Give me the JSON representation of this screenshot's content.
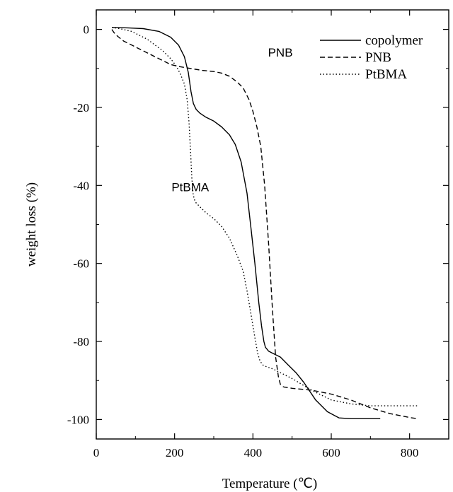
{
  "chart_data": {
    "type": "line",
    "xlabel": "Temperature (℃)",
    "ylabel": "weight loss (%)",
    "xlim": [
      0,
      900
    ],
    "ylim": [
      -105,
      5
    ],
    "xticks": [
      0,
      200,
      400,
      600,
      800
    ],
    "yticks": [
      0,
      -20,
      -40,
      -60,
      -80,
      -100
    ],
    "xtick_labels": [
      "0",
      "200",
      "400",
      "600",
      "800"
    ],
    "ytick_labels": [
      "0",
      "-20",
      "-40",
      "-60",
      "-80",
      "-100"
    ],
    "legend_position": "top-right",
    "grid": false,
    "annotations": [
      {
        "text": "PNB",
        "x": 470,
        "y": -7
      },
      {
        "text": "PtBMA",
        "x": 240,
        "y": -41.5
      }
    ],
    "series": [
      {
        "name": "copolymer",
        "style": "solid",
        "x": [
          40,
          80,
          120,
          160,
          190,
          210,
          225,
          235,
          242,
          248,
          255,
          265,
          280,
          300,
          320,
          340,
          355,
          370,
          385,
          395,
          405,
          415,
          422,
          428,
          432,
          436,
          440,
          450,
          470,
          490,
          510,
          530,
          560,
          590,
          620,
          650,
          700,
          725
        ],
        "y": [
          0.5,
          0.4,
          0.2,
          -0.5,
          -2,
          -4,
          -7,
          -11,
          -16,
          -19,
          -20.5,
          -21.5,
          -22.5,
          -23.5,
          -25,
          -27,
          -29.5,
          -34,
          -42,
          -51,
          -60,
          -70,
          -76,
          -80,
          -81.5,
          -82,
          -82.5,
          -83,
          -84,
          -86,
          -88,
          -90.5,
          -95,
          -98,
          -99.6,
          -99.8,
          -99.8,
          -99.8
        ]
      },
      {
        "name": "PNB",
        "style": "dashed",
        "x": [
          40,
          45,
          55,
          70,
          100,
          130,
          160,
          190,
          210,
          240,
          270,
          300,
          320,
          340,
          360,
          375,
          390,
          400,
          410,
          420,
          430,
          440,
          450,
          458,
          465,
          470,
          475,
          480,
          500,
          550,
          600,
          650,
          700,
          750,
          800,
          820
        ],
        "y": [
          0,
          -0.8,
          -1.8,
          -3,
          -4.5,
          -6,
          -7.5,
          -9,
          -9.5,
          -10,
          -10.5,
          -10.8,
          -11.2,
          -12,
          -13.5,
          -15,
          -18,
          -21,
          -25,
          -30,
          -40,
          -55,
          -72,
          -84,
          -89,
          -91,
          -91.5,
          -91.7,
          -92,
          -92.5,
          -93.5,
          -95,
          -97,
          -98.5,
          -99.5,
          -99.8
        ]
      },
      {
        "name": "PtBMA",
        "style": "dotted",
        "x": [
          40,
          60,
          90,
          110,
          130,
          150,
          170,
          190,
          205,
          215,
          225,
          232,
          237,
          241,
          244,
          247,
          250,
          255,
          265,
          280,
          300,
          320,
          340,
          360,
          375,
          385,
          395,
          405,
          412,
          418,
          425,
          435,
          450,
          470,
          500,
          550,
          600,
          650,
          700,
          750,
          800,
          820
        ],
        "y": [
          0.5,
          0.2,
          -0.5,
          -1.5,
          -2.5,
          -4,
          -5.5,
          -7.5,
          -9.5,
          -11.5,
          -14,
          -18,
          -24,
          -32,
          -38,
          -42,
          -43.5,
          -44.5,
          -45.5,
          -47,
          -48.5,
          -50.5,
          -53.5,
          -58,
          -62,
          -67,
          -73,
          -79,
          -83,
          -85,
          -86,
          -86.5,
          -87,
          -88,
          -89.5,
          -92.5,
          -95,
          -96,
          -96.5,
          -96.5,
          -96.5,
          -96.5
        ]
      }
    ]
  }
}
